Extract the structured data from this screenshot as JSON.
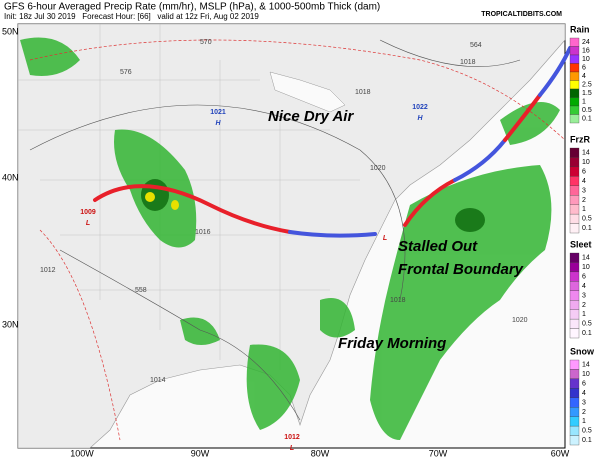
{
  "header": {
    "title": "GFS 6-hour Averaged Precip Rate (mm/hr), MSLP (hPa), & 1000-500mb Thick (dam)",
    "subtitle": "Init: 18z Jul 30 2019   Forecast Hour: [66]   valid at 12z Fri, Aug 02 2019",
    "site": "TROPICALTIDBITS.COM"
  },
  "map": {
    "lat_labels": [
      "50N",
      "40N",
      "30N"
    ],
    "lon_labels": [
      "100W",
      "90W",
      "80W",
      "70W",
      "60W"
    ],
    "annotations": [
      "Nice Dry Air",
      "Stalled Out",
      "Frontal Boundary",
      "Friday Morning"
    ],
    "pressure_centers": [
      {
        "value": "1021",
        "kind": "H"
      },
      {
        "value": "1022",
        "kind": "H"
      },
      {
        "value": "1009",
        "kind": "L"
      },
      {
        "value": "1012",
        "kind": "L"
      },
      {
        "kind": "L"
      }
    ],
    "isobar_labels": [
      "1018",
      "1018",
      "1020",
      "1016",
      "1018",
      "1014",
      "1020",
      "1012",
      "576",
      "570",
      "564",
      "558"
    ]
  },
  "legend": [
    {
      "title": "Rain",
      "ticks": [
        "24",
        "16",
        "10",
        "6",
        "4",
        "2.5",
        "1.5",
        "1",
        "0.5",
        "0.1"
      ]
    },
    {
      "title": "FrzR",
      "ticks": [
        "14",
        "10",
        "6",
        "4",
        "3",
        "2",
        "1",
        "0.5",
        "0.1"
      ]
    },
    {
      "title": "Sleet",
      "ticks": [
        "14",
        "10",
        "6",
        "4",
        "3",
        "2",
        "1",
        "0.5",
        "0.1"
      ]
    },
    {
      "title": "Snow",
      "ticks": [
        "14",
        "10",
        "6",
        "4",
        "3",
        "2",
        "1",
        "0.5",
        "0.1"
      ]
    }
  ]
}
